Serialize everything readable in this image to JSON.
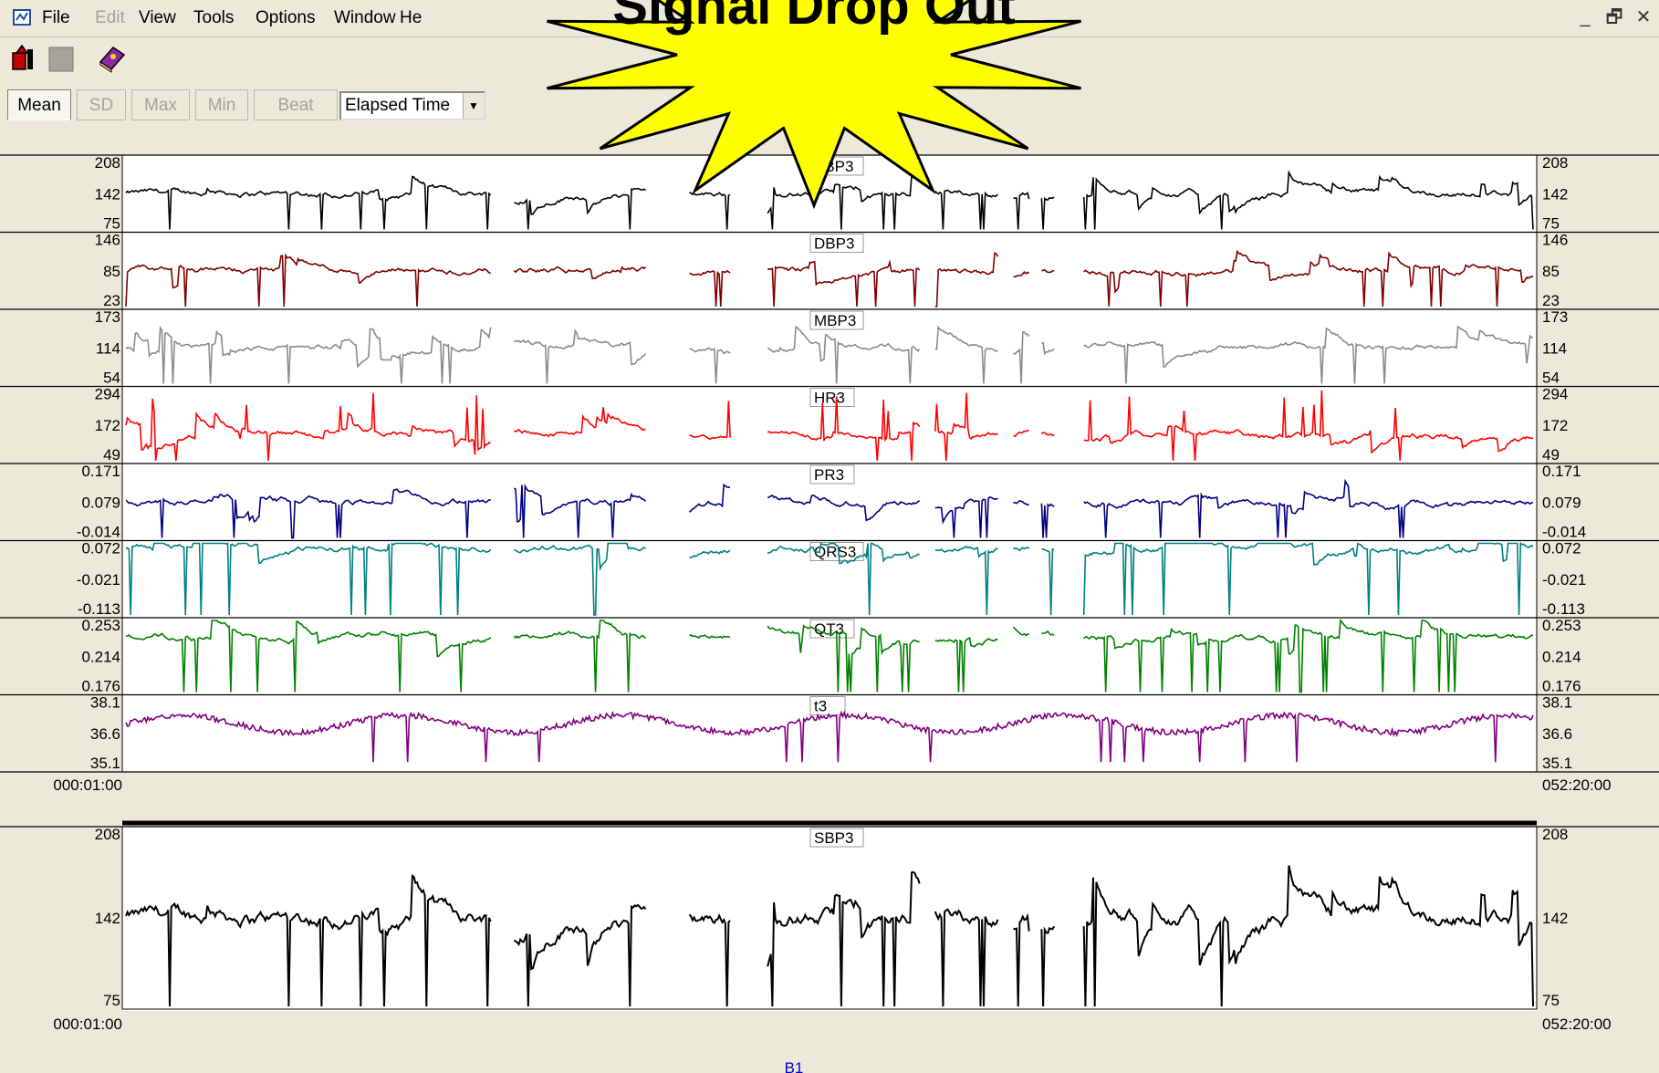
{
  "menu": {
    "items": [
      {
        "label": "File",
        "enabled": true
      },
      {
        "label": "Edit",
        "enabled": false
      },
      {
        "label": "View",
        "enabled": true
      },
      {
        "label": "Tools",
        "enabled": true
      },
      {
        "label": "Options",
        "enabled": true
      },
      {
        "label": "Window",
        "enabled": true
      },
      {
        "label": "He",
        "enabled": true
      }
    ]
  },
  "window_controls": {
    "minimize": "_",
    "restore": "🗗",
    "close": "✕"
  },
  "toolbar": {
    "icons": [
      "record-icon",
      "stop-icon",
      "book-icon"
    ]
  },
  "stat_tabs": [
    {
      "label": "Mean",
      "active": true
    },
    {
      "label": "SD",
      "active": false
    },
    {
      "label": "Max",
      "active": false
    },
    {
      "label": "Min",
      "active": false
    },
    {
      "label": "Beat",
      "active": false
    }
  ],
  "x_axis_select": {
    "value": "Elapsed Time"
  },
  "callout": {
    "text": "Signal Drop Out",
    "fill": "#ffff00",
    "stroke": "#000000"
  },
  "time_axis": {
    "start": "000:01:00",
    "end": "052:20:00"
  },
  "channels": [
    {
      "name": "SBP3",
      "color": "#000000",
      "ticks": [
        "208",
        "142",
        "75"
      ],
      "min": 75,
      "max": 208,
      "base": 142,
      "noise": 0.12,
      "drops": "down",
      "dropDensity": 0.35
    },
    {
      "name": "DBP3",
      "color": "#7f0000",
      "ticks": [
        "146",
        "85",
        "23"
      ],
      "min": 23,
      "max": 146,
      "base": 85,
      "noise": 0.12,
      "drops": "down",
      "dropDensity": 0.35
    },
    {
      "name": "MBP3",
      "color": "#8c8c8c",
      "ticks": [
        "173",
        "114",
        "54"
      ],
      "min": 54,
      "max": 173,
      "base": 114,
      "noise": 0.12,
      "drops": "down",
      "dropDensity": 0.35
    },
    {
      "name": "HR3",
      "color": "#ff0000",
      "ticks": [
        "294",
        "172",
        "49"
      ],
      "min": 49,
      "max": 294,
      "base": 140,
      "noise": 0.12,
      "drops": "up",
      "dropDensity": 0.35
    },
    {
      "name": "PR3",
      "color": "#000080",
      "ticks": [
        "0.171",
        "0.079",
        "-0.014"
      ],
      "min": -0.014,
      "max": 0.171,
      "base": 0.079,
      "noise": 0.06,
      "drops": "down",
      "dropDensity": 0.5
    },
    {
      "name": "QRS3",
      "color": "#008080",
      "ticks": [
        "0.072",
        "-0.021",
        "-0.113"
      ],
      "min": -0.113,
      "max": 0.072,
      "base": 0.06,
      "noise": 0.02,
      "drops": "down",
      "dropDensity": 0.55
    },
    {
      "name": "QT3",
      "color": "#008000",
      "ticks": [
        "0.253",
        "0.214",
        "0.176"
      ],
      "min": 0.176,
      "max": 0.253,
      "base": 0.235,
      "noise": 0.15,
      "drops": "down",
      "dropDensity": 0.5
    },
    {
      "name": "t3",
      "color": "#800080",
      "ticks": [
        "38.1",
        "36.6",
        "35.1"
      ],
      "min": 35.1,
      "max": 38.1,
      "base": 37.0,
      "noise": 0.12,
      "drops": "wave",
      "dropDensity": 0.3
    }
  ],
  "detail": {
    "name": "SBP3",
    "color": "#000000",
    "ticks": [
      "208",
      "142",
      "75"
    ],
    "min": 75,
    "max": 208,
    "base": 142
  },
  "footer_label": "B1"
}
